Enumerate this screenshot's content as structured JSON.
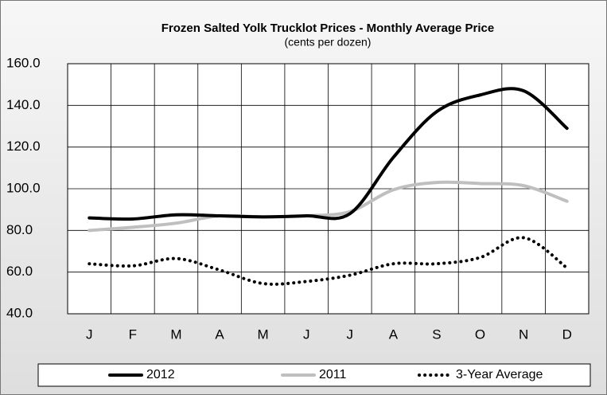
{
  "chart_data": {
    "type": "line",
    "title": "Frozen Salted Yolk Trucklot Prices - Monthly Average Price",
    "subtitle": "(cents per dozen)",
    "categories": [
      "J",
      "F",
      "M",
      "A",
      "M",
      "J",
      "J",
      "A",
      "S",
      "O",
      "N",
      "D"
    ],
    "series": [
      {
        "name": "2012",
        "color": "#000000",
        "line_style": "solid",
        "values": [
          86,
          85.5,
          87.5,
          87,
          86.5,
          87,
          88,
          115,
          137,
          145,
          147,
          129
        ]
      },
      {
        "name": "2011",
        "color": "#bfbfbf",
        "line_style": "solid",
        "values": [
          80,
          81.5,
          83.5,
          87,
          86.5,
          87,
          89,
          99.5,
          103,
          102.5,
          101.5,
          94
        ]
      },
      {
        "name": "3-Year Average",
        "color": "#000000",
        "line_style": "dotted",
        "values": [
          64,
          63,
          66.5,
          61,
          54.5,
          55.5,
          58.5,
          64,
          64,
          67,
          76.5,
          62
        ]
      }
    ],
    "ylim": [
      40,
      160
    ],
    "yticks": [
      {
        "value": 40,
        "label": "40.0"
      },
      {
        "value": 60,
        "label": "60.0"
      },
      {
        "value": 80,
        "label": "80.0"
      },
      {
        "value": 100,
        "label": "100.0"
      },
      {
        "value": 120,
        "label": "120.0"
      },
      {
        "value": 140,
        "label": "140.0"
      },
      {
        "value": 160,
        "label": "160.0"
      }
    ],
    "grid": true,
    "legend": "bottom"
  }
}
